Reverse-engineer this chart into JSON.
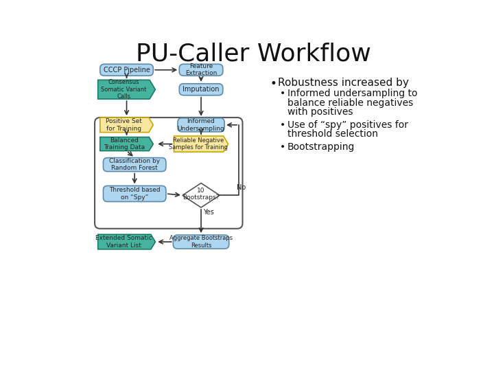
{
  "title": "PU-Caller Workflow",
  "title_fontsize": 26,
  "background_color": "#ffffff",
  "bullet_text": [
    {
      "level": 1,
      "text": "Robustness increased by"
    },
    {
      "level": 2,
      "text": "Informed undersampling to\nbalance reliable negatives\nwith positives"
    },
    {
      "level": 2,
      "text": "Use of “spy” positives for\nthreshold selection"
    },
    {
      "level": 2,
      "text": "Bootstrapping"
    }
  ],
  "colors": {
    "light_blue": "#aed6f1",
    "teal": "#45b39d",
    "yellow": "#f9e79f",
    "box_stroke": "#5d8aa8",
    "teal_stroke": "#1a7a65",
    "yellow_stroke": "#c8a800",
    "loop_box_stroke": "#555555",
    "arrow": "#333333",
    "diamond_stroke": "#555555"
  }
}
